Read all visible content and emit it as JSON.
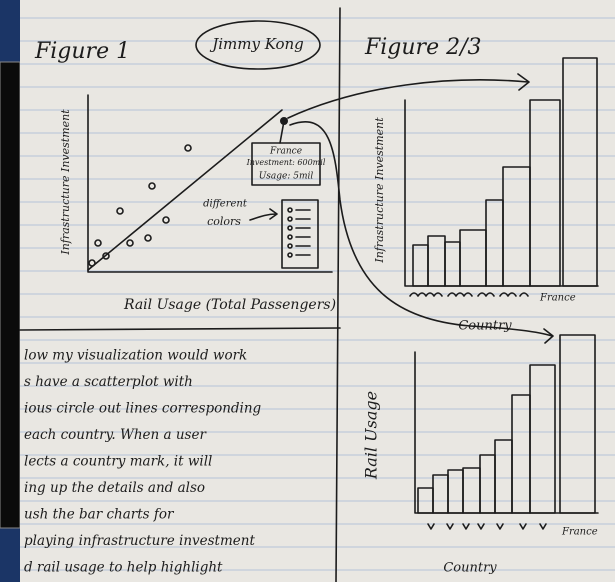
{
  "header": {
    "figure1": "Figure 1",
    "author": "Jimmy Kong",
    "figure23": "Figure 2/3"
  },
  "scatter": {
    "y_label": "Infrastructure Investment",
    "x_label": "Rail Usage (Total Passengers)",
    "tooltip": [
      "France",
      "Investment: 600mil",
      "Usage: 5mil"
    ],
    "note": [
      "different",
      "colors"
    ]
  },
  "bar_top": {
    "y_label": "Infrastructure Investment",
    "x_label": "France",
    "axis_title": "Country"
  },
  "bar_bottom": {
    "y_label": "Rail Usage",
    "x_label": "France",
    "axis_title": "Country"
  },
  "notes": {
    "lines": [
      "low my visualization would work",
      "s have a scatterplot with",
      "ious circle out lines corresponding",
      "each country. When a user",
      "lects a country mark, it will",
      "ing up the details and also",
      "ush the bar charts for",
      "playing infrastructure investment",
      "d rail usage to help highlight"
    ]
  }
}
